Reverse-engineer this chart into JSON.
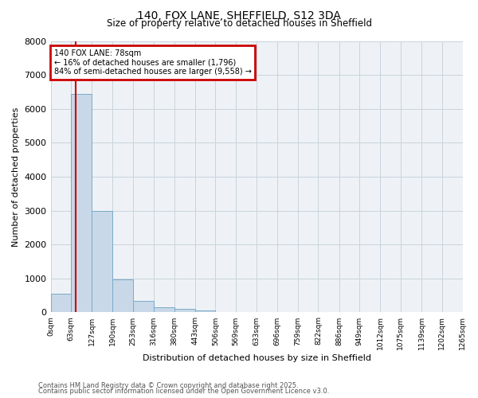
{
  "title_line1": "140, FOX LANE, SHEFFIELD, S12 3DA",
  "title_line2": "Size of property relative to detached houses in Sheffield",
  "xlabel": "Distribution of detached houses by size in Sheffield",
  "ylabel": "Number of detached properties",
  "bin_edges": [
    0,
    63,
    127,
    190,
    253,
    316,
    380,
    443,
    506,
    569,
    633,
    696,
    759,
    822,
    886,
    949,
    1012,
    1075,
    1139,
    1202,
    1265
  ],
  "bar_heights": [
    550,
    6450,
    2980,
    980,
    350,
    150,
    100,
    60,
    0,
    0,
    0,
    0,
    0,
    0,
    0,
    0,
    0,
    0,
    0,
    0
  ],
  "bar_color": "#c8d8e8",
  "bar_edge_color": "#7aaac8",
  "property_size": 78,
  "annotation_title": "140 FOX LANE: 78sqm",
  "annotation_line2": "← 16% of detached houses are smaller (1,796)",
  "annotation_line3": "84% of semi-detached houses are larger (9,558) →",
  "annotation_box_color": "#cc0000",
  "vline_color": "#cc0000",
  "ylim": [
    0,
    8000
  ],
  "yticks": [
    0,
    1000,
    2000,
    3000,
    4000,
    5000,
    6000,
    7000,
    8000
  ],
  "grid_color": "#c8d4dc",
  "background_color": "#eef2f6",
  "footer_line1": "Contains HM Land Registry data © Crown copyright and database right 2025.",
  "footer_line2": "Contains public sector information licensed under the Open Government Licence v3.0."
}
